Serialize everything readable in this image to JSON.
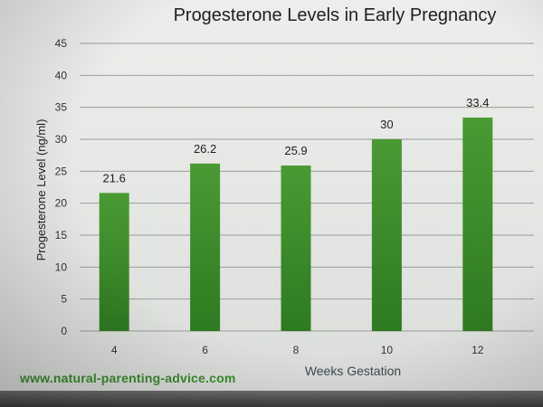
{
  "chart_data": {
    "type": "bar",
    "title": "Progesterone Levels in Early Pregnancy",
    "xlabel": "Weeks Gestation",
    "ylabel": "Progesterone Level (ng/ml)",
    "categories": [
      "4",
      "6",
      "8",
      "10",
      "12"
    ],
    "values": [
      21.6,
      26.2,
      25.9,
      30,
      33.4
    ],
    "data_labels": [
      "21.6",
      "26.2",
      "25.9",
      "30",
      "33.4"
    ],
    "ylim": [
      0,
      45
    ],
    "yticks": [
      "0",
      "5",
      "10",
      "15",
      "20",
      "25",
      "30",
      "35",
      "40",
      "45"
    ],
    "grid": true,
    "legend": "none"
  },
  "footer": {
    "source": "www.natural-parenting-advice.com"
  },
  "colors": {
    "bar_top": "#4a9a33",
    "bar_bottom": "#2e7a21",
    "grid": "#9a9c98",
    "axis_text": "#333333",
    "source_text": "#3a8a2e"
  }
}
